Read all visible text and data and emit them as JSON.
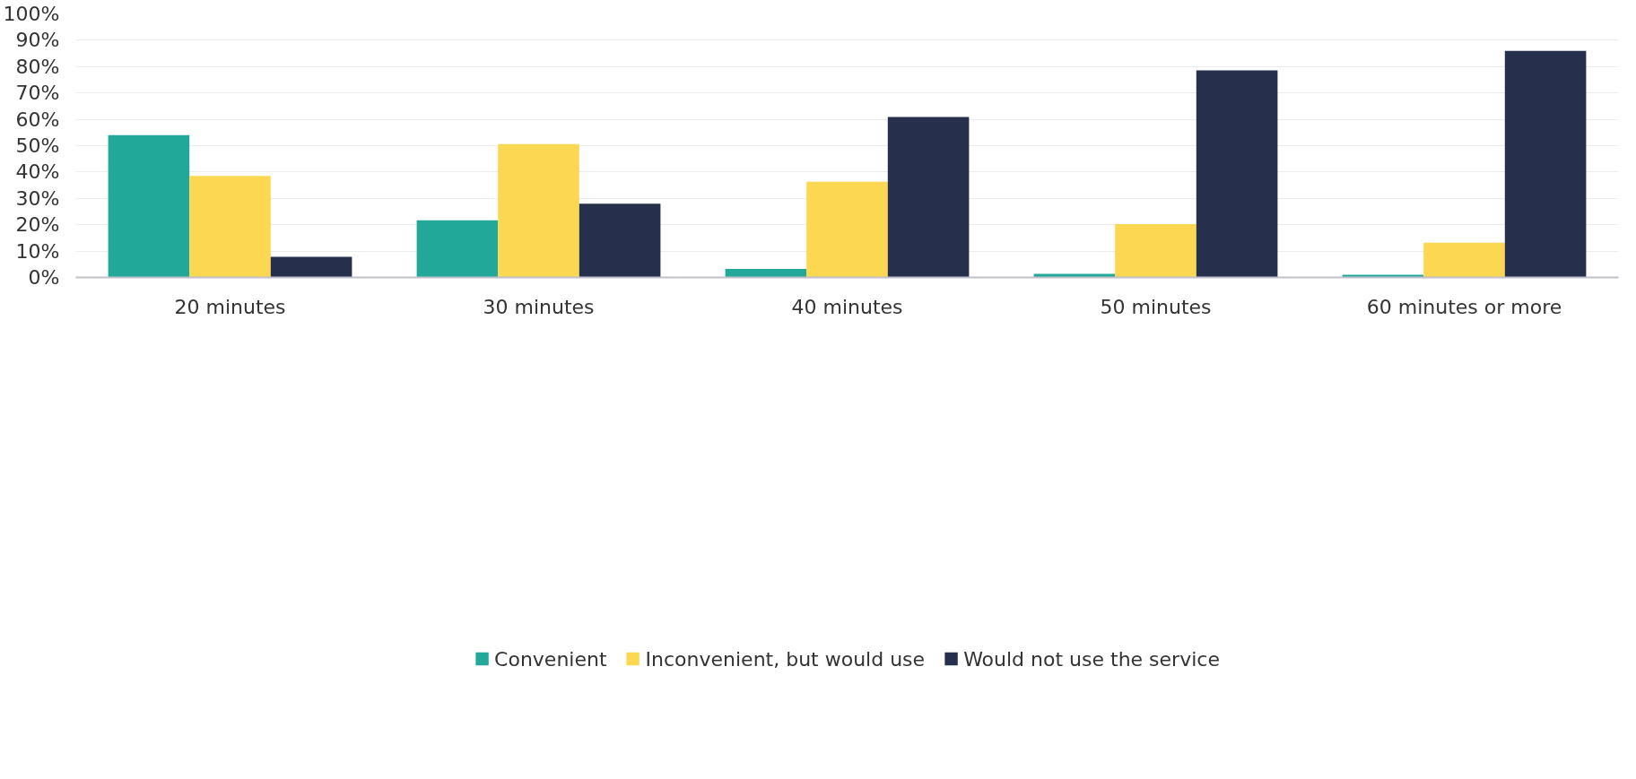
{
  "chart_data": {
    "type": "bar",
    "categories": [
      "20 minutes",
      "30 minutes",
      "40 minutes",
      "50 minutes",
      "60 minutes or more"
    ],
    "series": [
      {
        "name": "Convenient",
        "color": "#22a899",
        "values": [
          54,
          21.7,
          3.2,
          1.4,
          1
        ]
      },
      {
        "name": "Inconvenient, but would use",
        "color": "#fcd752",
        "values": [
          38.5,
          50.6,
          36.3,
          20.2,
          13.2
        ]
      },
      {
        "name": "Would not use the service",
        "color": "#26304c",
        "values": [
          7.8,
          28,
          60.9,
          78.6,
          86
        ]
      }
    ],
    "ylim": [
      0,
      100
    ],
    "yticks": [
      {
        "value": 0,
        "label": "0%"
      },
      {
        "value": 10,
        "label": "10%"
      },
      {
        "value": 20,
        "label": "20%"
      },
      {
        "value": 30,
        "label": "30%"
      },
      {
        "value": 40,
        "label": "40%"
      },
      {
        "value": 50,
        "label": "50%"
      },
      {
        "value": 60,
        "label": "60%"
      },
      {
        "value": 70,
        "label": "70%"
      },
      {
        "value": 80,
        "label": "80%"
      },
      {
        "value": 90,
        "label": "90%"
      },
      {
        "value": 100,
        "label": "100%"
      }
    ],
    "grid": "y",
    "legend": "bottom"
  }
}
